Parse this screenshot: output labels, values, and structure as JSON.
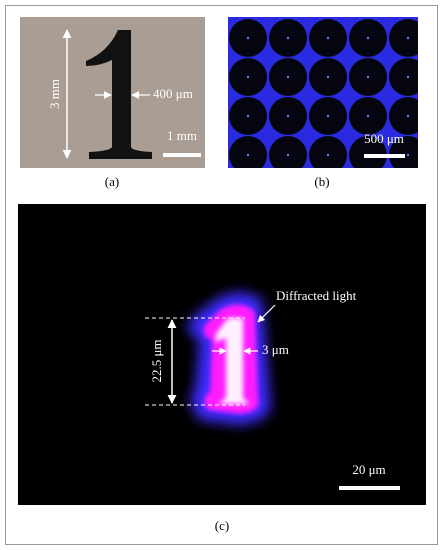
{
  "panel_a": {
    "height_label": "3 mm",
    "width_label": "400 μm",
    "scale_label": "1 mm",
    "caption": "(a)"
  },
  "panel_b": {
    "scale_label": "500 μm",
    "caption": "(b)"
  },
  "panel_c": {
    "annotation": "Diffracted light",
    "height_label": "22.5 μm",
    "width_label": "3 μm",
    "scale_label": "20 μm",
    "caption": "(c)"
  }
}
